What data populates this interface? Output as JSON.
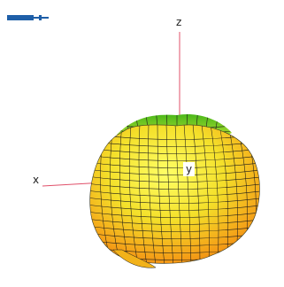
{
  "axes": {
    "x_label": "x",
    "y_label": "y",
    "z_label": "z",
    "axis_color": "#e0506a"
  },
  "surface": {
    "colormap_top": "#6ec81e",
    "colormap_mid": "#f7e020",
    "colormap_bottom": "#f07a10",
    "mesh_color": "#1a1a1a"
  },
  "toolbar": {
    "widget_icon": "slider-bar-icon",
    "widget_color": "#1f5fa8"
  }
}
